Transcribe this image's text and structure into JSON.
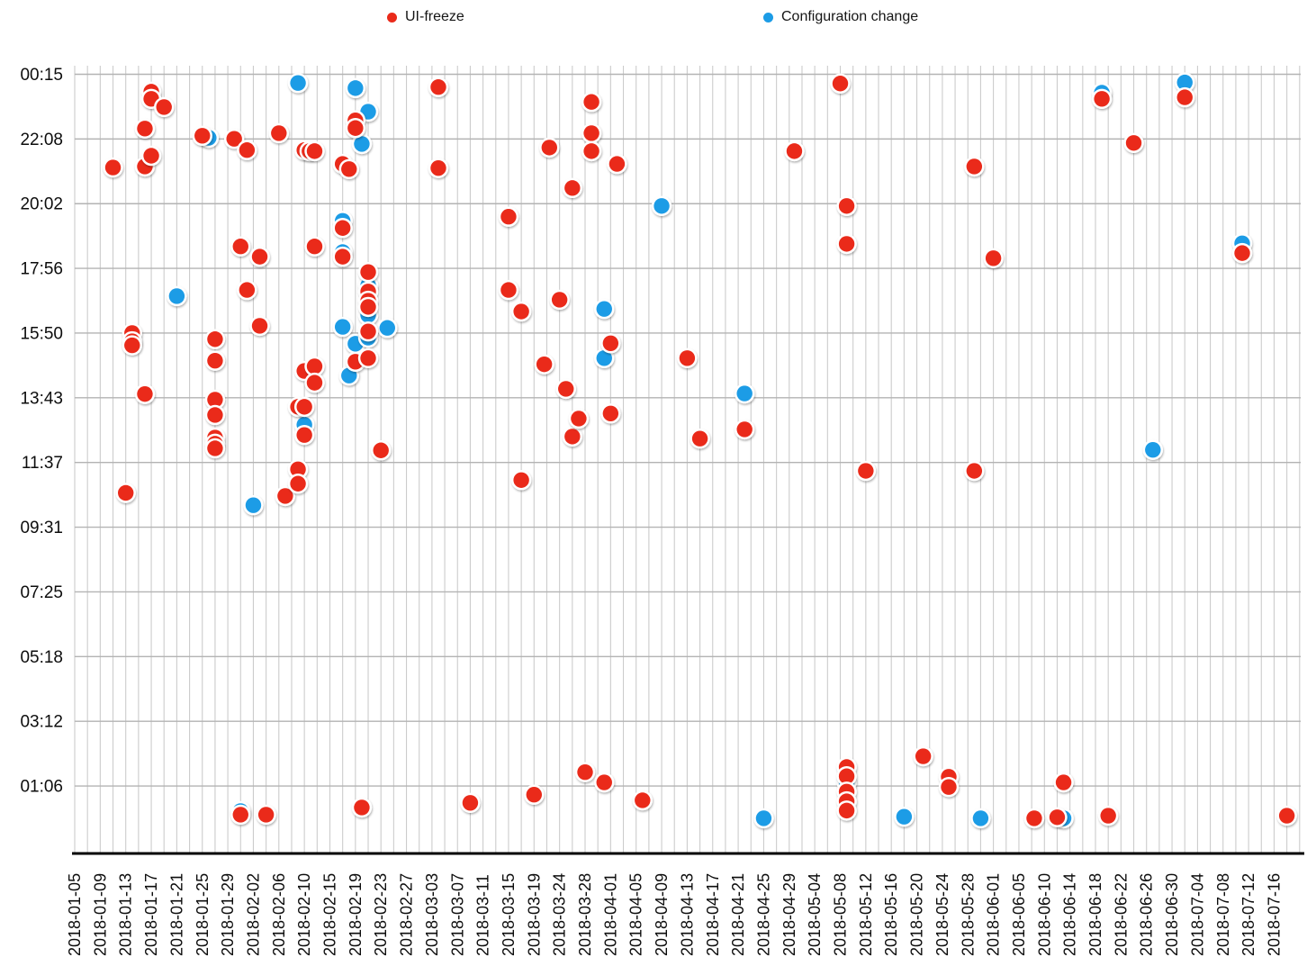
{
  "legend": {
    "items": [
      {
        "label": "UI-freeze",
        "color": "#ea2a1a"
      },
      {
        "label": "Configuration change",
        "color": "#1c9ce6"
      }
    ]
  },
  "chart_data": {
    "type": "scatter",
    "title": "",
    "grid": "on",
    "legend_position": "top",
    "x_axis": {
      "tick_labels": [
        "2018-01-05",
        "2018-01-09",
        "2018-01-13",
        "2018-01-17",
        "2018-01-21",
        "2018-01-25",
        "2018-01-29",
        "2018-02-02",
        "2018-02-06",
        "2018-02-10",
        "2018-02-15",
        "2018-02-19",
        "2018-02-23",
        "2018-02-27",
        "2018-03-03",
        "2018-03-07",
        "2018-03-11",
        "2018-03-15",
        "2018-03-19",
        "2018-03-24",
        "2018-03-28",
        "2018-04-01",
        "2018-04-05",
        "2018-04-09",
        "2018-04-13",
        "2018-04-17",
        "2018-04-21",
        "2018-04-25",
        "2018-04-29",
        "2018-05-04",
        "2018-05-08",
        "2018-05-12",
        "2018-05-16",
        "2018-05-20",
        "2018-05-24",
        "2018-05-28",
        "2018-06-01",
        "2018-06-05",
        "2018-06-10",
        "2018-06-14",
        "2018-06-18",
        "2018-06-22",
        "2018-06-26",
        "2018-06-30",
        "2018-07-04",
        "2018-07-08",
        "2018-07-12",
        "2018-07-16"
      ]
    },
    "y_axis": {
      "tick_labels": [
        "00:15",
        "22:08",
        "20:02",
        "17:56",
        "15:50",
        "13:43",
        "11:37",
        "09:31",
        "07:25",
        "05:18",
        "03:12",
        "01:06"
      ]
    },
    "series": [
      {
        "name": "UI-freeze",
        "color": "#ea2a1a",
        "points": [
          [
            "2018-01-11",
            "21:13"
          ],
          [
            "2018-01-13",
            "10:38"
          ],
          [
            "2018-01-14",
            "15:50"
          ],
          [
            "2018-01-14",
            "15:34"
          ],
          [
            "2018-01-14",
            "15:26"
          ],
          [
            "2018-01-16",
            "22:29"
          ],
          [
            "2018-01-16",
            "21:15"
          ],
          [
            "2018-01-16",
            "13:51"
          ],
          [
            "2018-01-17",
            "23:41"
          ],
          [
            "2018-01-17",
            "23:27"
          ],
          [
            "2018-01-17",
            "21:36"
          ],
          [
            "2018-01-19",
            "23:11"
          ],
          [
            "2018-01-25",
            "22:15"
          ],
          [
            "2018-01-27",
            "15:38"
          ],
          [
            "2018-01-27",
            "14:56"
          ],
          [
            "2018-01-27",
            "13:40"
          ],
          [
            "2018-01-27",
            "13:10"
          ],
          [
            "2018-01-27",
            "12:26"
          ],
          [
            "2018-01-27",
            "12:14"
          ],
          [
            "2018-01-27",
            "12:05"
          ],
          [
            "2018-01-30",
            "22:09"
          ],
          [
            "2018-01-31",
            "18:39"
          ],
          [
            "2018-01-31",
            "00:10"
          ],
          [
            "2018-02-01",
            "21:47"
          ],
          [
            "2018-02-01",
            "17:14"
          ],
          [
            "2018-02-03",
            "18:19"
          ],
          [
            "2018-02-03",
            "16:04"
          ],
          [
            "2018-02-04",
            "00:10"
          ],
          [
            "2018-02-06",
            "22:20"
          ],
          [
            "2018-02-07",
            "10:32"
          ],
          [
            "2018-02-09",
            "13:26"
          ],
          [
            "2018-02-09",
            "11:24"
          ],
          [
            "2018-02-09",
            "10:56"
          ],
          [
            "2018-02-10",
            "21:47"
          ],
          [
            "2018-02-10",
            "14:36"
          ],
          [
            "2018-02-10",
            "13:26"
          ],
          [
            "2018-02-10",
            "12:31"
          ],
          [
            "2018-02-11",
            "21:45"
          ],
          [
            "2018-02-12",
            "21:45"
          ],
          [
            "2018-02-12",
            "18:39"
          ],
          [
            "2018-02-12",
            "14:45"
          ],
          [
            "2018-02-12",
            "14:13"
          ],
          [
            "2018-02-17",
            "21:20"
          ],
          [
            "2018-02-17",
            "19:15"
          ],
          [
            "2018-02-17",
            "18:19"
          ],
          [
            "2018-02-18",
            "21:10"
          ],
          [
            "2018-02-19",
            "22:45"
          ],
          [
            "2018-02-19",
            "22:30"
          ],
          [
            "2018-02-19",
            "14:54"
          ],
          [
            "2018-02-20",
            "00:24"
          ],
          [
            "2018-02-21",
            "17:49"
          ],
          [
            "2018-02-21",
            "17:11"
          ],
          [
            "2018-02-21",
            "16:53"
          ],
          [
            "2018-02-21",
            "16:41"
          ],
          [
            "2018-02-21",
            "15:53"
          ],
          [
            "2018-02-21",
            "15:01"
          ],
          [
            "2018-02-23",
            "12:01"
          ],
          [
            "2018-03-04",
            "23:50"
          ],
          [
            "2018-03-04",
            "21:12"
          ],
          [
            "2018-03-09",
            "00:33"
          ],
          [
            "2018-03-15",
            "19:37"
          ],
          [
            "2018-03-15",
            "17:14"
          ],
          [
            "2018-03-17",
            "16:32"
          ],
          [
            "2018-03-17",
            "11:03"
          ],
          [
            "2018-03-19",
            "00:49"
          ],
          [
            "2018-03-21",
            "14:49"
          ],
          [
            "2018-03-22",
            "21:52"
          ],
          [
            "2018-03-24",
            "16:55"
          ],
          [
            "2018-03-25",
            "14:01"
          ],
          [
            "2018-03-26",
            "20:33"
          ],
          [
            "2018-03-26",
            "12:28"
          ],
          [
            "2018-03-27",
            "13:03"
          ],
          [
            "2018-03-28",
            "01:33"
          ],
          [
            "2018-03-29",
            "23:21"
          ],
          [
            "2018-03-29",
            "22:20"
          ],
          [
            "2018-03-29",
            "21:45"
          ],
          [
            "2018-03-31",
            "01:13"
          ],
          [
            "2018-04-01",
            "15:30"
          ],
          [
            "2018-04-01",
            "13:13"
          ],
          [
            "2018-04-02",
            "21:20"
          ],
          [
            "2018-04-06",
            "00:38"
          ],
          [
            "2018-04-13",
            "15:01"
          ],
          [
            "2018-04-15",
            "12:24"
          ],
          [
            "2018-04-22",
            "12:42"
          ],
          [
            "2018-04-30",
            "21:45"
          ],
          [
            "2018-05-08",
            "23:57"
          ],
          [
            "2018-05-09",
            "19:58"
          ],
          [
            "2018-05-09",
            "18:44"
          ],
          [
            "2018-05-09",
            "01:43"
          ],
          [
            "2018-05-09",
            "01:25"
          ],
          [
            "2018-05-09",
            "00:55"
          ],
          [
            "2018-05-09",
            "00:36"
          ],
          [
            "2018-05-09",
            "00:18"
          ],
          [
            "2018-05-12",
            "11:21"
          ],
          [
            "2018-05-21",
            "02:04"
          ],
          [
            "2018-05-25",
            "01:24"
          ],
          [
            "2018-05-25",
            "01:04"
          ],
          [
            "2018-05-29",
            "21:15"
          ],
          [
            "2018-05-29",
            "11:21"
          ],
          [
            "2018-06-01",
            "18:16"
          ],
          [
            "2018-06-08",
            "00:03"
          ],
          [
            "2018-06-12",
            "00:05"
          ],
          [
            "2018-06-13",
            "01:13"
          ],
          [
            "2018-06-19",
            "23:27"
          ],
          [
            "2018-06-20",
            "00:08"
          ],
          [
            "2018-06-24",
            "22:01"
          ],
          [
            "2018-07-02",
            "23:30"
          ],
          [
            "2018-07-11",
            "18:26"
          ],
          [
            "2018-07-18",
            "00:08"
          ]
        ]
      },
      {
        "name": "Configuration change",
        "color": "#1c9ce6",
        "points": [
          [
            "2018-01-21",
            "17:02"
          ],
          [
            "2018-01-26",
            "22:11"
          ],
          [
            "2018-01-31",
            "00:17"
          ],
          [
            "2018-02-02",
            "10:14"
          ],
          [
            "2018-02-09",
            "23:58"
          ],
          [
            "2018-02-10",
            "12:51"
          ],
          [
            "2018-02-17",
            "19:29"
          ],
          [
            "2018-02-17",
            "18:28"
          ],
          [
            "2018-02-17",
            "16:02"
          ],
          [
            "2018-02-18",
            "14:27"
          ],
          [
            "2018-02-19",
            "23:48"
          ],
          [
            "2018-02-19",
            "15:29"
          ],
          [
            "2018-02-20",
            "21:59"
          ],
          [
            "2018-02-21",
            "23:02"
          ],
          [
            "2018-02-21",
            "17:23"
          ],
          [
            "2018-02-21",
            "16:25"
          ],
          [
            "2018-02-21",
            "15:41"
          ],
          [
            "2018-02-24",
            "16:00"
          ],
          [
            "2018-03-31",
            "16:37"
          ],
          [
            "2018-03-31",
            "15:01"
          ],
          [
            "2018-04-09",
            "19:58"
          ],
          [
            "2018-04-22",
            "13:52"
          ],
          [
            "2018-04-25",
            "00:03"
          ],
          [
            "2018-05-09",
            "01:13"
          ],
          [
            "2018-05-18",
            "00:06"
          ],
          [
            "2018-05-30",
            "00:03"
          ],
          [
            "2018-06-13",
            "00:03"
          ],
          [
            "2018-06-19",
            "23:39"
          ],
          [
            "2018-06-27",
            "12:02"
          ],
          [
            "2018-07-02",
            "23:59"
          ],
          [
            "2018-07-11",
            "18:45"
          ]
        ]
      }
    ]
  }
}
